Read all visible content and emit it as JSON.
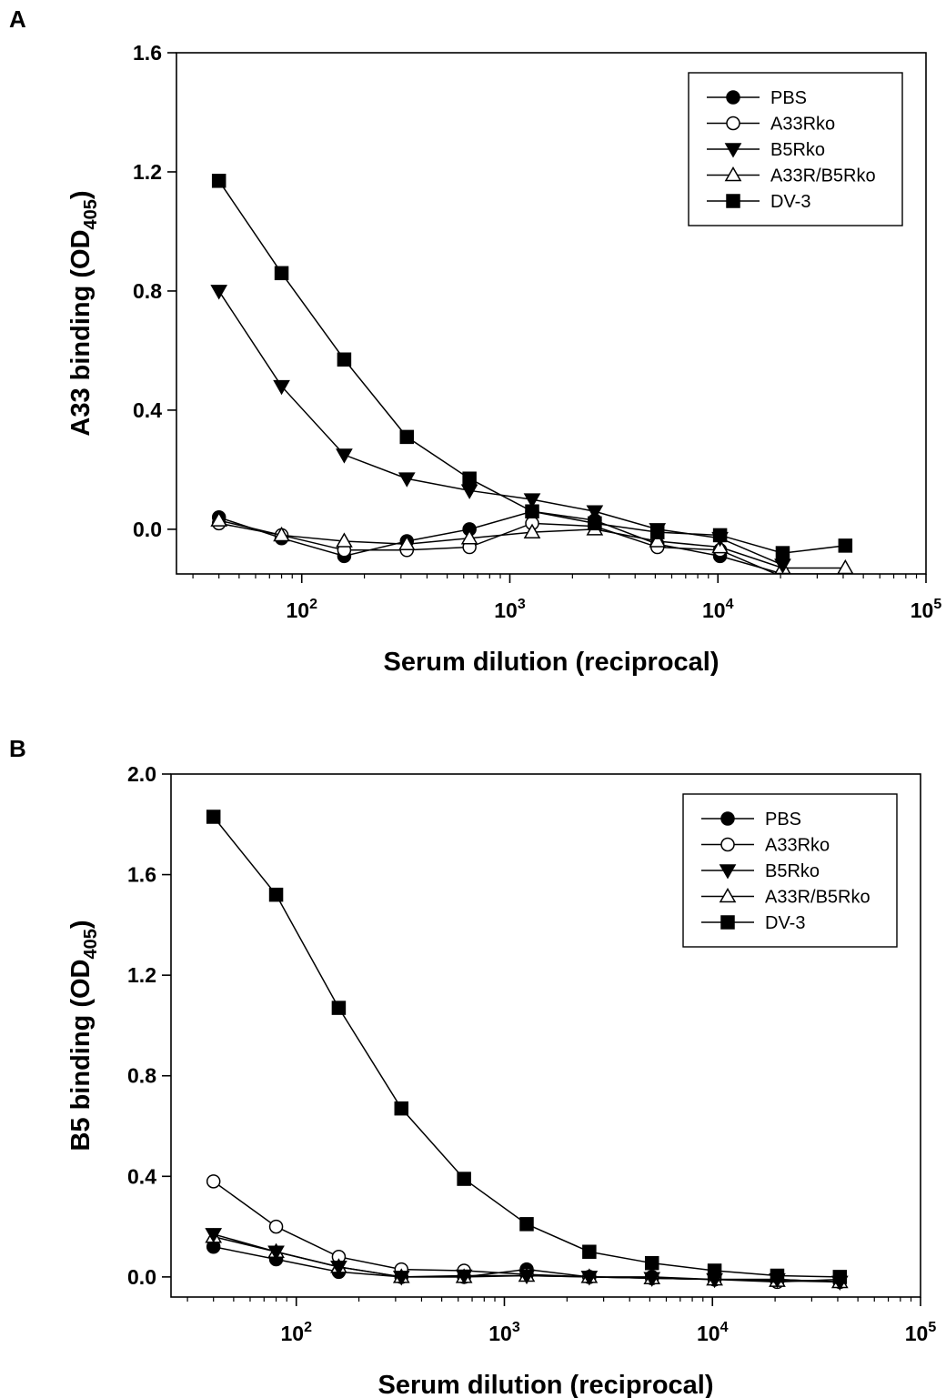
{
  "panel_labels": [
    "A",
    "B"
  ],
  "chart_data": [
    {
      "type": "line",
      "panel": "A",
      "x_scale": "log",
      "xlim": [
        25,
        100000
      ],
      "ylim": [
        -0.15,
        1.6
      ],
      "y_ticks": [
        0.0,
        0.4,
        0.8,
        1.2,
        1.6
      ],
      "y_tick_labels": [
        "0.0",
        "0.4",
        "0.8",
        "1.2",
        "1.6"
      ],
      "x_ticks": [
        100,
        1000,
        10000,
        100000
      ],
      "x_tick_base": "10",
      "x_tick_exponents": [
        "2",
        "3",
        "4",
        "5"
      ],
      "xlabel": "Serum dilution (reciprocal)",
      "ylabel": {
        "main": "A33 binding (OD",
        "sub": "405",
        "end": ")"
      },
      "legend_position": "top-right",
      "x": [
        40,
        80,
        160,
        320,
        640,
        1280,
        2560,
        5120,
        10240,
        20480,
        40960
      ],
      "series": [
        {
          "name": "PBS",
          "marker": "filled-circle",
          "values": [
            0.04,
            -0.03,
            -0.09,
            -0.04,
            0.0,
            0.06,
            0.03,
            -0.05,
            -0.09,
            -0.15,
            -0.15
          ]
        },
        {
          "name": "A33Rko",
          "marker": "open-circle",
          "values": [
            0.02,
            -0.02,
            -0.07,
            -0.07,
            -0.06,
            0.02,
            0.01,
            -0.06,
            -0.07,
            -0.16,
            null
          ]
        },
        {
          "name": "B5Rko",
          "marker": "filled-triangle-down",
          "values": [
            0.8,
            0.48,
            0.25,
            0.17,
            0.13,
            0.1,
            0.06,
            0.0,
            -0.03,
            -0.12,
            null
          ]
        },
        {
          "name": "A33R/B5Rko",
          "marker": "open-triangle-up",
          "values": [
            0.03,
            -0.02,
            -0.04,
            -0.05,
            -0.03,
            -0.01,
            0.0,
            -0.04,
            -0.06,
            -0.13,
            -0.13
          ]
        },
        {
          "name": "DV-3",
          "marker": "filled-square",
          "values": [
            1.17,
            0.86,
            0.57,
            0.31,
            0.17,
            0.06,
            0.02,
            -0.01,
            -0.02,
            -0.08,
            -0.055
          ]
        }
      ]
    },
    {
      "type": "line",
      "panel": "B",
      "x_scale": "log",
      "xlim": [
        25,
        100000
      ],
      "ylim": [
        -0.08,
        2.0
      ],
      "y_ticks": [
        0.0,
        0.4,
        0.8,
        1.2,
        1.6,
        2.0
      ],
      "y_tick_labels": [
        "0.0",
        "0.4",
        "0.8",
        "1.2",
        "1.6",
        "2.0"
      ],
      "x_ticks": [
        100,
        1000,
        10000,
        100000
      ],
      "x_tick_base": "10",
      "x_tick_exponents": [
        "2",
        "3",
        "4",
        "5"
      ],
      "xlabel": "Serum dilution (reciprocal)",
      "ylabel": {
        "main": "B5 binding (OD",
        "sub": "405",
        "end": ")"
      },
      "legend_position": "top-right",
      "x": [
        40,
        80,
        160,
        320,
        640,
        1280,
        2560,
        5120,
        10240,
        20480,
        40960
      ],
      "series": [
        {
          "name": "PBS",
          "marker": "filled-circle",
          "values": [
            0.12,
            0.07,
            0.02,
            0.0,
            0.0,
            0.03,
            0.0,
            0.0,
            -0.01,
            -0.01,
            -0.02
          ]
        },
        {
          "name": "A33Rko",
          "marker": "open-circle",
          "values": [
            0.38,
            0.2,
            0.08,
            0.03,
            0.025,
            0.01,
            0.0,
            -0.005,
            -0.01,
            -0.02,
            -0.01
          ]
        },
        {
          "name": "B5Rko",
          "marker": "filled-triangle-down",
          "values": [
            0.17,
            0.1,
            0.04,
            0.0,
            0.005,
            0.005,
            0.0,
            -0.005,
            -0.01,
            -0.01,
            -0.02
          ]
        },
        {
          "name": "A33R/B5Rko",
          "marker": "open-triangle-up",
          "values": [
            0.16,
            0.1,
            0.04,
            0.0,
            0.0,
            0.005,
            0.0,
            -0.005,
            -0.01,
            -0.015,
            -0.02
          ]
        },
        {
          "name": "DV-3",
          "marker": "filled-square",
          "values": [
            1.83,
            1.52,
            1.07,
            0.67,
            0.39,
            0.21,
            0.1,
            0.055,
            0.025,
            0.005,
            0.0
          ]
        }
      ]
    }
  ]
}
